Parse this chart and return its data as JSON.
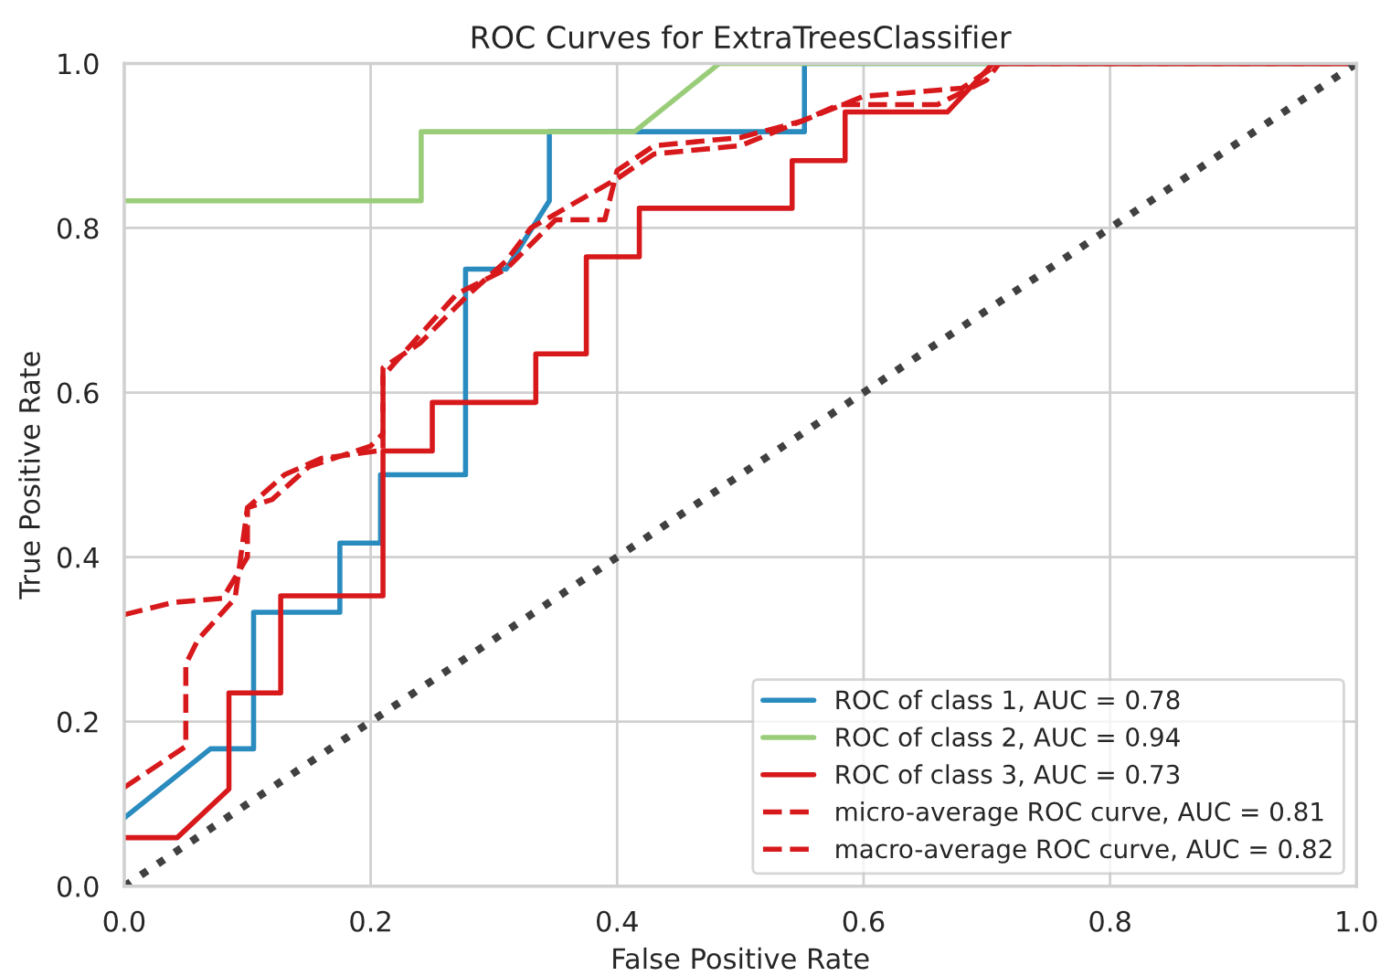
{
  "chart_data": {
    "type": "line",
    "title": "ROC Curves for ExtraTreesClassifier",
    "xlabel": "False Positive Rate",
    "ylabel": "True Positive Rate",
    "xlim": [
      0,
      1
    ],
    "ylim": [
      0,
      1
    ],
    "xticks": [
      {
        "value": 0,
        "label": "0.0"
      },
      {
        "value": 0.2,
        "label": "0.2"
      },
      {
        "value": 0.4,
        "label": "0.4"
      },
      {
        "value": 0.6,
        "label": "0.6"
      },
      {
        "value": 0.8,
        "label": "0.8"
      },
      {
        "value": 1,
        "label": "1.0"
      }
    ],
    "yticks": [
      {
        "value": 0,
        "label": "0.0"
      },
      {
        "value": 0.2,
        "label": "0.2"
      },
      {
        "value": 0.4,
        "label": "0.4"
      },
      {
        "value": 0.6,
        "label": "0.6"
      },
      {
        "value": 0.8,
        "label": "0.8"
      },
      {
        "value": 1,
        "label": "1.0"
      }
    ],
    "grid": true,
    "legend": "bottom right",
    "series": [
      {
        "name": "ROC of class 1, AUC = 0.78",
        "color": "#2a8bbf",
        "line_style": "solid",
        "x": [
          0,
          0.07,
          0.105,
          0.105,
          0.175,
          0.175,
          0.208,
          0.208,
          0.277,
          0.277,
          0.31,
          0.345,
          0.345,
          0.552,
          0.552,
          1
        ],
        "values": [
          0.083,
          0.167,
          0.167,
          0.333,
          0.333,
          0.417,
          0.417,
          0.5,
          0.5,
          0.75,
          0.75,
          0.833,
          0.917,
          0.917,
          1,
          1
        ]
      },
      {
        "name": "ROC of class 2, AUC = 0.94",
        "color": "#9acd7a",
        "line_style": "solid",
        "x": [
          0,
          0.241,
          0.241,
          0.414,
          0.483,
          1
        ],
        "values": [
          0.833,
          0.833,
          0.917,
          0.917,
          1,
          1
        ]
      },
      {
        "name": "ROC of class 3, AUC = 0.73",
        "color": "#d7191c",
        "line_style": "solid",
        "x": [
          0,
          0.043,
          0.085,
          0.085,
          0.127,
          0.127,
          0.21,
          0.21,
          0.25,
          0.25,
          0.334,
          0.334,
          0.375,
          0.375,
          0.418,
          0.418,
          0.542,
          0.542,
          0.585,
          0.585,
          0.668,
          0.705,
          1
        ],
        "values": [
          0.059,
          0.059,
          0.118,
          0.235,
          0.235,
          0.353,
          0.353,
          0.529,
          0.529,
          0.588,
          0.588,
          0.647,
          0.647,
          0.765,
          0.765,
          0.824,
          0.824,
          0.882,
          0.882,
          0.941,
          0.941,
          1,
          1
        ]
      },
      {
        "name": "micro-average ROC curve, AUC = 0.81",
        "color": "#d7191c",
        "line_style": "dashed",
        "x": [
          0,
          0.04,
          0.08,
          0.1,
          0.1,
          0.12,
          0.15,
          0.2,
          0.21,
          0.21,
          0.24,
          0.28,
          0.31,
          0.33,
          0.4,
          0.43,
          0.5,
          0.55,
          0.6,
          0.68,
          0.71,
          1
        ],
        "values": [
          0.33,
          0.345,
          0.35,
          0.4,
          0.46,
          0.47,
          0.51,
          0.535,
          0.55,
          0.63,
          0.66,
          0.72,
          0.76,
          0.8,
          0.86,
          0.89,
          0.9,
          0.93,
          0.96,
          0.97,
          1,
          1
        ]
      },
      {
        "name": "macro-average ROC curve, AUC = 0.82",
        "color": "#d7191c",
        "line_style": "dashed",
        "x": [
          0,
          0.02,
          0.05,
          0.05,
          0.06,
          0.09,
          0.1,
          0.13,
          0.16,
          0.21,
          0.21,
          0.24,
          0.27,
          0.31,
          0.35,
          0.39,
          0.4,
          0.43,
          0.5,
          0.55,
          0.58,
          0.66,
          0.7,
          0.71,
          1
        ],
        "values": [
          0.12,
          0.14,
          0.17,
          0.27,
          0.3,
          0.35,
          0.46,
          0.5,
          0.52,
          0.53,
          0.62,
          0.67,
          0.72,
          0.75,
          0.81,
          0.81,
          0.87,
          0.9,
          0.91,
          0.93,
          0.95,
          0.95,
          0.98,
          1,
          1
        ]
      },
      {
        "color": "#404040",
        "line_style": "dotted",
        "x": [
          0,
          1
        ],
        "values": [
          0,
          1
        ]
      }
    ]
  }
}
